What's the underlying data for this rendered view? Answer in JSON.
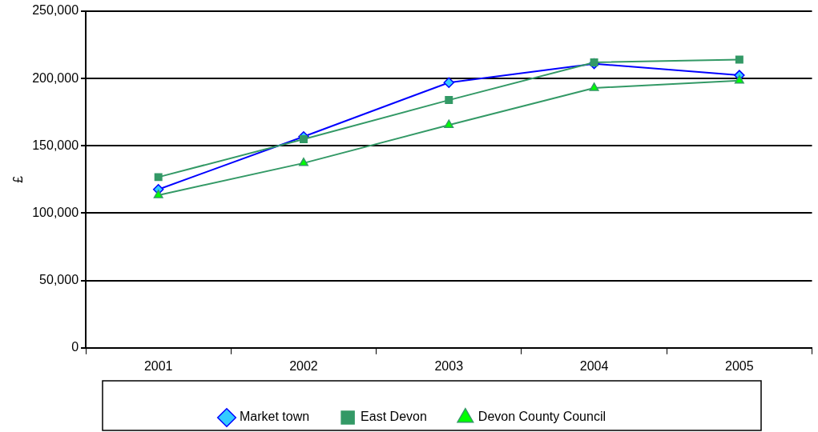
{
  "chart_data": {
    "type": "line",
    "ylabel": "£",
    "categories": [
      "2001",
      "2002",
      "2003",
      "2004",
      "2005"
    ],
    "series": [
      {
        "name": "Market town",
        "color": "#0000ff",
        "marker": "diamond",
        "values": [
          117700,
          156900,
          197000,
          211000,
          202400
        ]
      },
      {
        "name": "East Devon",
        "color": "#339966",
        "marker": "square",
        "values": [
          126800,
          154900,
          184000,
          212000,
          214000
        ]
      },
      {
        "name": "Devon County Council",
        "color": "#339966",
        "marker": "triangle",
        "values": [
          113400,
          137200,
          165500,
          193000,
          198500
        ]
      }
    ],
    "ylim": [
      0,
      250000
    ],
    "yticks": [
      0,
      {
        "value": 50000,
        "label": "50,000"
      },
      {
        "value": 100000,
        "label": "100,000"
      },
      {
        "value": 150000,
        "label": "150,000"
      },
      {
        "value": 200000,
        "label": "200,000"
      },
      {
        "value": 250000,
        "label": "250,000"
      }
    ],
    "grid": "y",
    "legend": "bottom",
    "line_style": "solid"
  }
}
